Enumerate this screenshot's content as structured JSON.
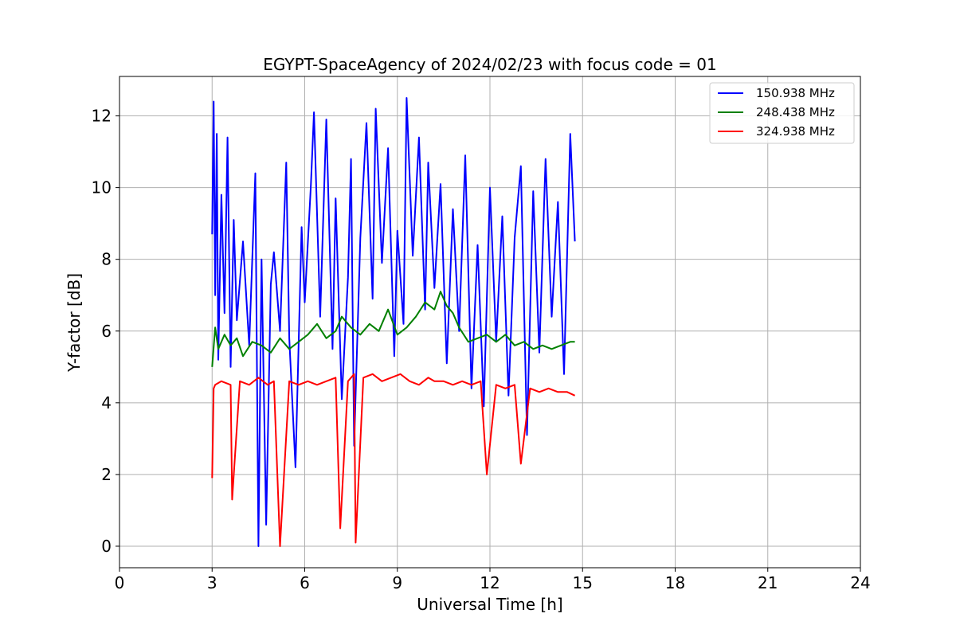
{
  "chart_data": {
    "type": "line",
    "title": "EGYPT-SpaceAgency of 2024/02/23 with focus code = 01",
    "xlabel": "Universal Time [h]",
    "ylabel": "Y-factor [dB]",
    "xlim": [
      0,
      24
    ],
    "ylim": [
      -0.6,
      13.1
    ],
    "xticks": [
      0,
      3,
      6,
      9,
      12,
      15,
      18,
      21,
      24
    ],
    "yticks": [
      0,
      2,
      4,
      6,
      8,
      10,
      12
    ],
    "grid": true,
    "legend_position": "top-right",
    "series": [
      {
        "name": "150.938 MHz",
        "color": "#0000ff",
        "x": [
          3.0,
          3.05,
          3.1,
          3.15,
          3.2,
          3.3,
          3.4,
          3.5,
          3.6,
          3.7,
          3.8,
          4.0,
          4.2,
          4.4,
          4.5,
          4.6,
          4.75,
          4.9,
          5.0,
          5.2,
          5.4,
          5.5,
          5.7,
          5.9,
          6.0,
          6.2,
          6.3,
          6.5,
          6.7,
          6.9,
          7.0,
          7.2,
          7.4,
          7.5,
          7.6,
          7.8,
          8.0,
          8.2,
          8.3,
          8.5,
          8.7,
          8.9,
          9.0,
          9.2,
          9.3,
          9.5,
          9.7,
          9.9,
          10.0,
          10.2,
          10.4,
          10.6,
          10.8,
          11.0,
          11.2,
          11.4,
          11.6,
          11.8,
          12.0,
          12.2,
          12.4,
          12.6,
          12.8,
          13.0,
          13.2,
          13.4,
          13.6,
          13.8,
          14.0,
          14.2,
          14.4,
          14.6,
          14.75
        ],
        "y": [
          8.7,
          12.4,
          7.0,
          11.5,
          5.2,
          9.8,
          6.5,
          11.4,
          5.0,
          9.1,
          6.3,
          8.5,
          5.6,
          10.4,
          0.0,
          8.0,
          0.6,
          7.3,
          8.2,
          6.0,
          10.7,
          5.8,
          2.2,
          8.9,
          6.8,
          10.1,
          12.1,
          6.4,
          11.9,
          5.5,
          9.7,
          4.1,
          7.5,
          10.8,
          2.8,
          8.6,
          11.8,
          6.9,
          12.2,
          7.9,
          11.1,
          5.3,
          8.8,
          6.2,
          12.5,
          8.1,
          11.4,
          6.6,
          10.7,
          7.2,
          10.1,
          5.1,
          9.4,
          6.0,
          10.9,
          4.4,
          8.4,
          3.9,
          10.0,
          5.7,
          9.2,
          4.2,
          8.6,
          10.6,
          3.1,
          9.9,
          5.4,
          10.8,
          6.4,
          9.6,
          4.8,
          11.5,
          8.5
        ]
      },
      {
        "name": "248.438 MHz",
        "color": "#008000",
        "x": [
          3.0,
          3.1,
          3.2,
          3.4,
          3.6,
          3.8,
          4.0,
          4.3,
          4.6,
          4.9,
          5.2,
          5.5,
          5.8,
          6.1,
          6.4,
          6.7,
          7.0,
          7.2,
          7.5,
          7.8,
          8.1,
          8.4,
          8.7,
          9.0,
          9.3,
          9.6,
          9.9,
          10.2,
          10.4,
          10.6,
          10.8,
          11.0,
          11.3,
          11.6,
          11.9,
          12.2,
          12.5,
          12.8,
          13.1,
          13.4,
          13.7,
          14.0,
          14.3,
          14.6,
          14.75
        ],
        "y": [
          5.0,
          6.1,
          5.5,
          5.9,
          5.6,
          5.8,
          5.3,
          5.7,
          5.6,
          5.4,
          5.8,
          5.5,
          5.7,
          5.9,
          6.2,
          5.8,
          6.0,
          6.4,
          6.1,
          5.9,
          6.2,
          6.0,
          6.6,
          5.9,
          6.1,
          6.4,
          6.8,
          6.6,
          7.1,
          6.7,
          6.5,
          6.1,
          5.7,
          5.8,
          5.9,
          5.7,
          5.9,
          5.6,
          5.7,
          5.5,
          5.6,
          5.5,
          5.6,
          5.7,
          5.7
        ]
      },
      {
        "name": "324.938 MHz",
        "color": "#ff0000",
        "x": [
          3.0,
          3.05,
          3.1,
          3.3,
          3.6,
          3.65,
          3.9,
          4.2,
          4.5,
          4.8,
          5.0,
          5.2,
          5.5,
          5.8,
          6.1,
          6.4,
          6.7,
          7.0,
          7.15,
          7.4,
          7.6,
          7.65,
          7.9,
          8.2,
          8.5,
          8.8,
          9.1,
          9.4,
          9.7,
          10.0,
          10.2,
          10.5,
          10.8,
          11.1,
          11.4,
          11.7,
          11.9,
          12.2,
          12.5,
          12.8,
          13.0,
          13.3,
          13.6,
          13.9,
          14.2,
          14.5,
          14.75
        ],
        "y": [
          1.9,
          4.4,
          4.5,
          4.6,
          4.5,
          1.3,
          4.6,
          4.5,
          4.7,
          4.5,
          4.6,
          0.0,
          4.6,
          4.5,
          4.6,
          4.5,
          4.6,
          4.7,
          0.5,
          4.6,
          4.8,
          0.1,
          4.7,
          4.8,
          4.6,
          4.7,
          4.8,
          4.6,
          4.5,
          4.7,
          4.6,
          4.6,
          4.5,
          4.6,
          4.5,
          4.6,
          2.0,
          4.5,
          4.4,
          4.5,
          2.3,
          4.4,
          4.3,
          4.4,
          4.3,
          4.3,
          4.2
        ]
      }
    ]
  }
}
